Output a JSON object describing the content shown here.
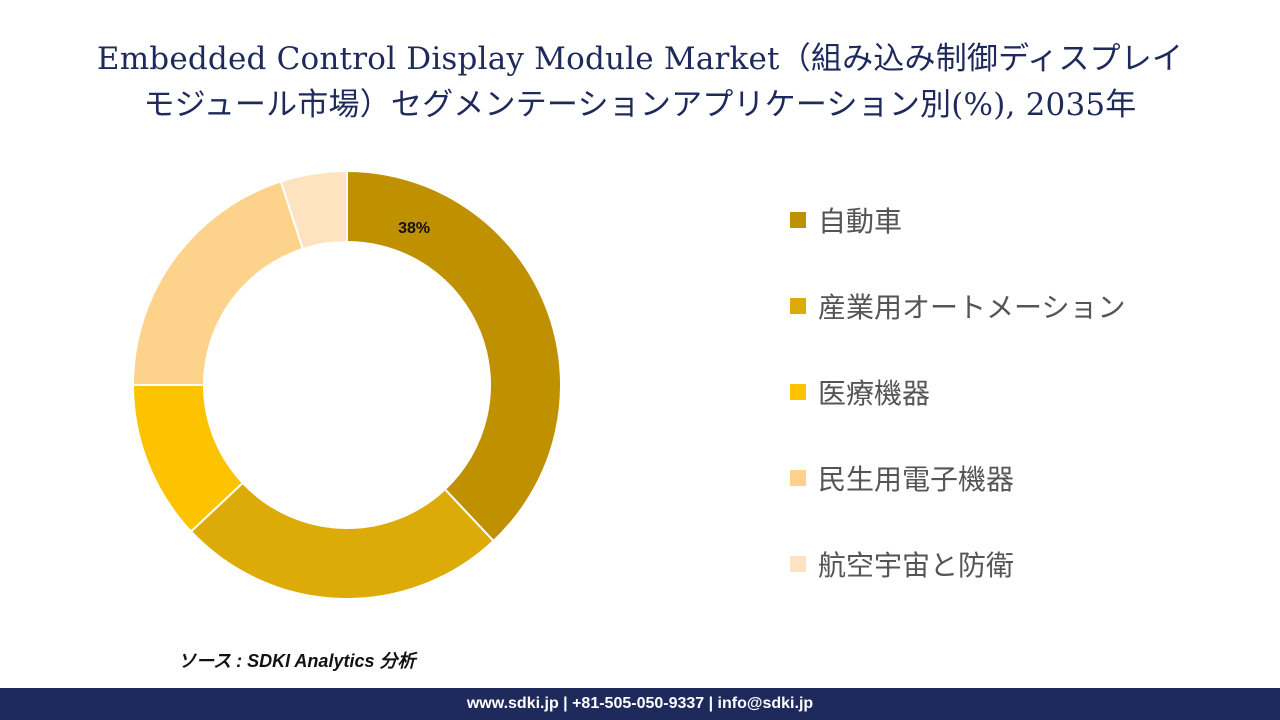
{
  "title": {
    "line1": "Embedded Control Display Module Market（組み込み制御ディスプレイ",
    "line2": "モジュール市場）セグメンテーションアプリケーション別(%), 2035年"
  },
  "chart_data": {
    "type": "pie",
    "donut": true,
    "categories": [
      "自動車",
      "産業用オートメーション",
      "医療機器",
      "民生用電子機器",
      "航空宇宙と防衛"
    ],
    "values": [
      38,
      25,
      12,
      20,
      5
    ],
    "colors": [
      "#bf9000",
      "#dcab08",
      "#fdc300",
      "#fdd28b",
      "#fde3bf"
    ],
    "data_labels": [
      "38%",
      "",
      "",
      "",
      ""
    ],
    "legend_position": "right"
  },
  "source": "ソース : SDKI Analytics 分析",
  "footer": "www.sdki.jp | +81-505-050-9337 | info@sdki.jp"
}
